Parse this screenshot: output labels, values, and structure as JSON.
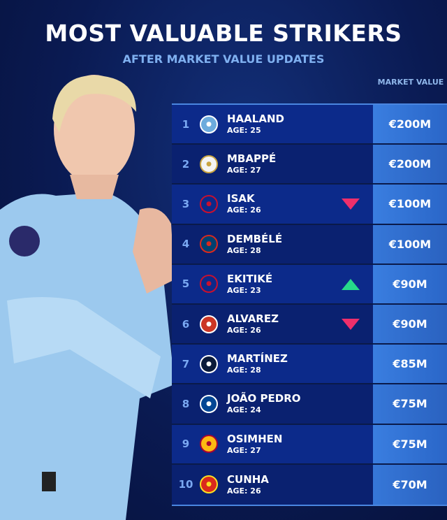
{
  "header": {
    "title": "MOST VALUABLE STRIKERS",
    "subtitle": "AFTER MARKET VALUE UPDATES",
    "value_column": "MARKET VALUE"
  },
  "colors": {
    "up": "#27d98a",
    "down": "#ee2f6b",
    "value_cell": "#3a7ee0"
  },
  "players": [
    {
      "rank": "1",
      "name": "HAALAND",
      "age": "AGE: 25",
      "club_icon": "man-city-crest",
      "value": "€200M",
      "trend": ""
    },
    {
      "rank": "2",
      "name": "MBAPPÉ",
      "age": "AGE: 27",
      "club_icon": "real-madrid-crest",
      "value": "€200M",
      "trend": ""
    },
    {
      "rank": "3",
      "name": "ISAK",
      "age": "AGE: 26",
      "club_icon": "liverpool-crest",
      "value": "€100M",
      "trend": "down"
    },
    {
      "rank": "4",
      "name": "DEMBÉLÉ",
      "age": "AGE: 28",
      "club_icon": "psg-crest",
      "value": "€100M",
      "trend": ""
    },
    {
      "rank": "5",
      "name": "EKITIKÉ",
      "age": "AGE: 23",
      "club_icon": "liverpool-crest",
      "value": "€90M",
      "trend": "up"
    },
    {
      "rank": "6",
      "name": "ALVAREZ",
      "age": "AGE: 26",
      "club_icon": "atletico-madrid-crest",
      "value": "€90M",
      "trend": "down"
    },
    {
      "rank": "7",
      "name": "MARTÍNEZ",
      "age": "AGE: 28",
      "club_icon": "inter-crest",
      "value": "€85M",
      "trend": ""
    },
    {
      "rank": "8",
      "name": "JOÃO PEDRO",
      "age": "AGE: 24",
      "club_icon": "chelsea-crest",
      "value": "€75M",
      "trend": ""
    },
    {
      "rank": "9",
      "name": "OSIMHEN",
      "age": "AGE: 27",
      "club_icon": "galatasaray-crest",
      "value": "€75M",
      "trend": ""
    },
    {
      "rank": "10",
      "name": "CUNHA",
      "age": "AGE: 26",
      "club_icon": "man-united-crest",
      "value": "€70M",
      "trend": ""
    }
  ]
}
